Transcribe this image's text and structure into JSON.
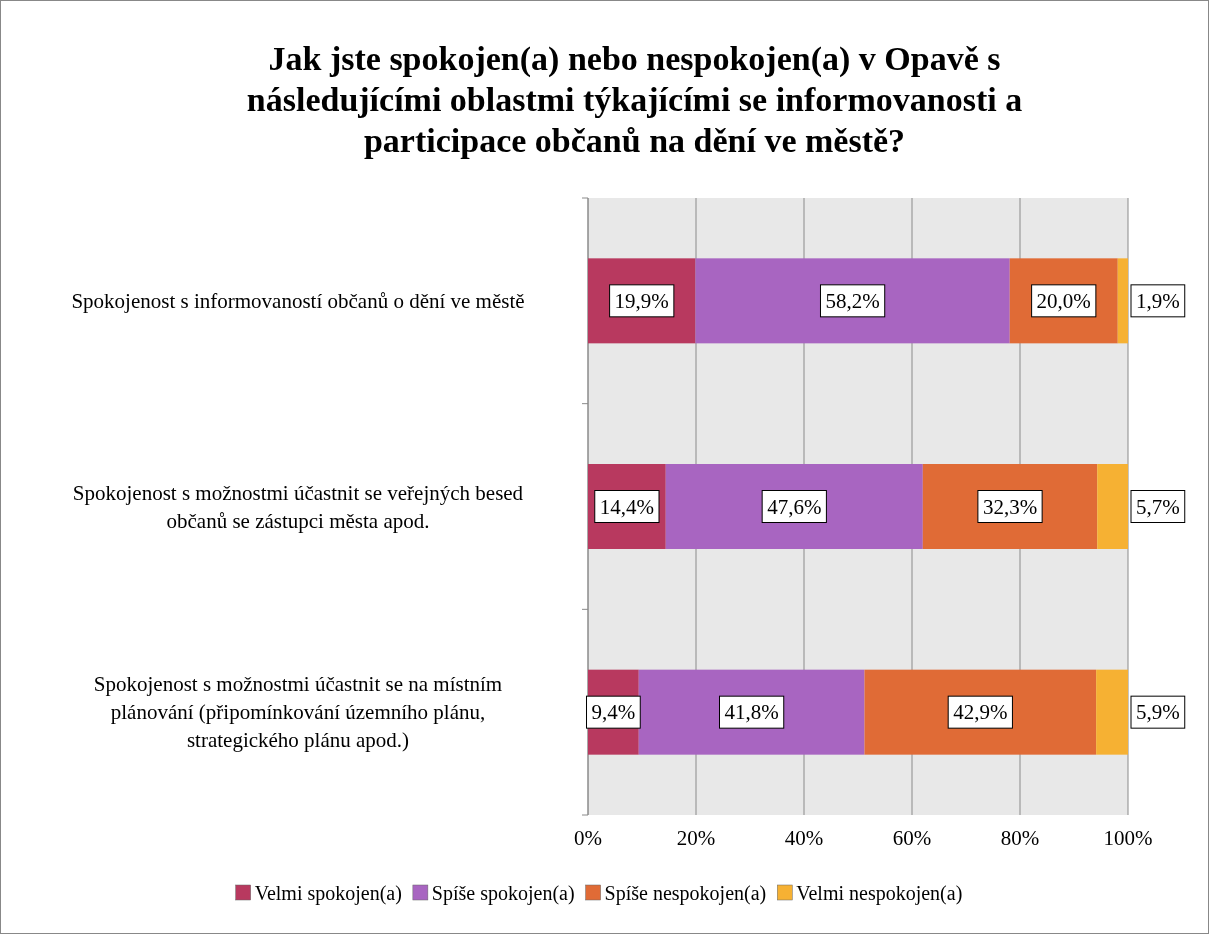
{
  "chart_data": {
    "type": "bar",
    "orientation": "horizontal",
    "stacked": true,
    "title": "Jak jste spokojen(a) nebo nespokojen(a) v Opavě s následujícími oblastmi týkajícími se informovanosti a participace občanů na dění ve městě?",
    "categories": [
      "Spokojenost s informovaností občanů o dění ve městě",
      "Spokojenost s možnostmi účastnit se veřejných besed občanů se zástupci města apod.",
      "Spokojenost s možnostmi účastnit se na místním plánování (připomínkování územního plánu, strategického plánu apod.)"
    ],
    "series": [
      {
        "name": "Velmi spokojen(a)",
        "color": "#b8395f",
        "values": [
          19.9,
          14.4,
          9.4
        ],
        "value_labels": [
          "19,9%",
          "14,4%",
          "9,4%"
        ]
      },
      {
        "name": "Spíše spokojen(a)",
        "color": "#a865c1",
        "values": [
          58.2,
          47.6,
          41.8
        ],
        "value_labels": [
          "58,2%",
          "47,6%",
          "41,8%"
        ]
      },
      {
        "name": "Spíše nespokojen(a)",
        "color": "#e06b36",
        "values": [
          20.0,
          32.3,
          42.9
        ],
        "value_labels": [
          "20,0%",
          "32,3%",
          "42,9%"
        ]
      },
      {
        "name": "Velmi nespokojen(a)",
        "color": "#f6b133",
        "values": [
          1.9,
          5.7,
          5.9
        ],
        "value_labels": [
          "1,9%",
          "5,7%",
          "5,9%"
        ]
      }
    ],
    "xlim": [
      0,
      100
    ],
    "xticks": [
      {
        "value": 0,
        "label": "0%"
      },
      {
        "value": 20,
        "label": "20%"
      },
      {
        "value": 40,
        "label": "40%"
      },
      {
        "value": 60,
        "label": "60%"
      },
      {
        "value": 80,
        "label": "80%"
      },
      {
        "value": 100,
        "label": "100%"
      }
    ],
    "grid": "x",
    "legend": "bottom"
  }
}
